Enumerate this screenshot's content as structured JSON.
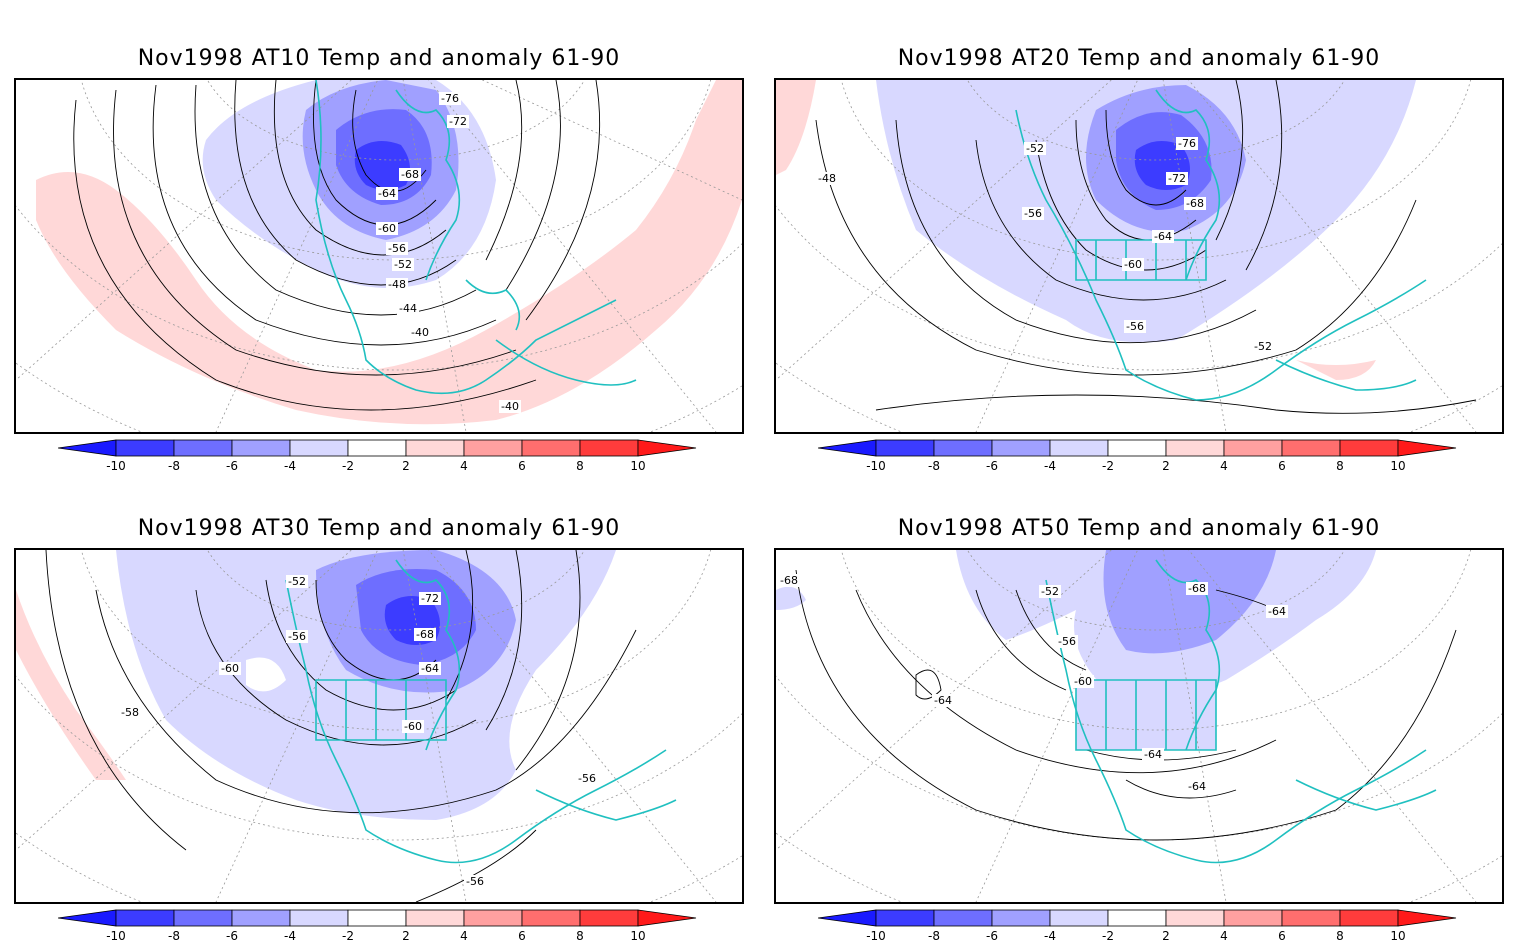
{
  "panels": [
    {
      "title": "Nov1998 AT10 Temp and anomaly 61-90",
      "contour_labels": [
        "-76",
        "-72",
        "-68",
        "-64",
        "-60",
        "-56",
        "-52",
        "-48",
        "-44",
        "-40",
        "-40"
      ]
    },
    {
      "title": "Nov1998 AT20 Temp and anomaly 61-90",
      "contour_labels": [
        "-52",
        "-48",
        "-56",
        "-76",
        "-72",
        "-68",
        "-64",
        "-60",
        "-56",
        "-52"
      ]
    },
    {
      "title": "Nov1998 AT30 Temp and anomaly 61-90",
      "contour_labels": [
        "-52",
        "-56",
        "-60",
        "-72",
        "-68",
        "-64",
        "-58",
        "-60",
        "-56",
        "-56"
      ]
    },
    {
      "title": "Nov1998 AT50 Temp and anomaly 61-90",
      "contour_labels": [
        "-52",
        "-68",
        "-64",
        "-56",
        "-60",
        "-64",
        "-64",
        "-64",
        "-68"
      ]
    }
  ],
  "colorbar": {
    "tick_labels": [
      "-10",
      "-8",
      "-6",
      "-4",
      "-2",
      "2",
      "4",
      "6",
      "8",
      "10"
    ],
    "colors": [
      "#1a1aff",
      "#3c3cff",
      "#6e6eff",
      "#a0a0ff",
      "#d8d8ff",
      "#ffffff",
      "#ffd8d8",
      "#ffa0a0",
      "#ff6e6e",
      "#ff3c3c",
      "#ff1a1a"
    ]
  },
  "style": {
    "coastline": "#20c0c0",
    "contour": "#000000",
    "grid": "#999999"
  }
}
